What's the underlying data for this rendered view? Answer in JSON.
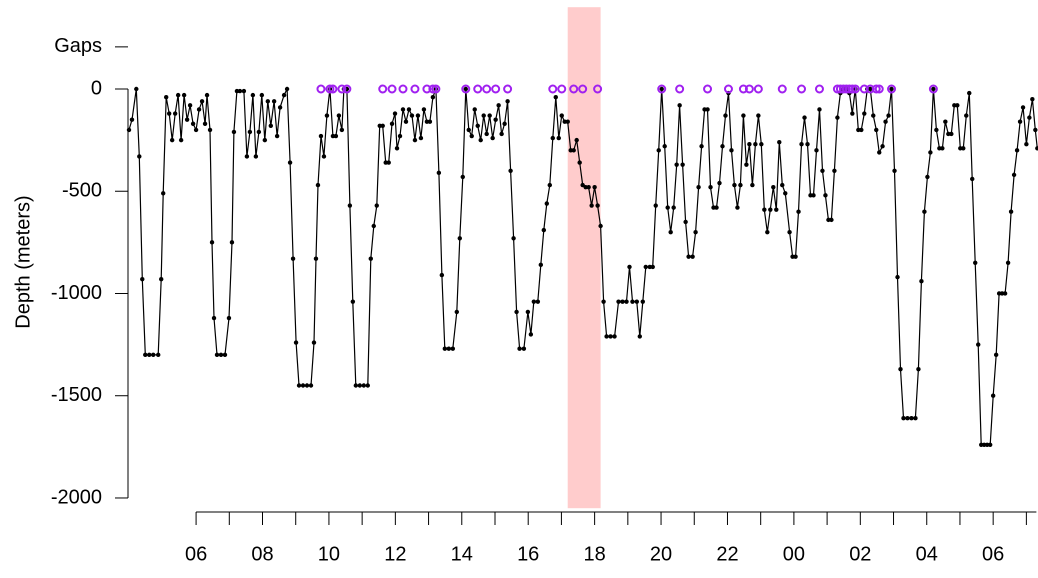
{
  "chart_data": {
    "type": "line",
    "y_label": "Depth (meters)",
    "xlim": [
      3.95,
      31.35
    ],
    "ylim": [
      -2050,
      400
    ],
    "yticks": [
      -2000,
      -1500,
      -1000,
      -500,
      0
    ],
    "xticks": [
      {
        "value": 6,
        "label": "06"
      },
      {
        "value": 8,
        "label": "08"
      },
      10,
      12,
      14,
      16,
      18,
      20,
      22,
      {
        "value": 24,
        "label": "00"
      },
      {
        "value": 26,
        "label": "02"
      },
      {
        "value": 28,
        "label": "04"
      },
      {
        "value": 30,
        "label": "06"
      }
    ],
    "x_minor_ticks": [
      7,
      9,
      11,
      13,
      15,
      17,
      19,
      21,
      23,
      25,
      27,
      29,
      31
    ],
    "highlight": {
      "x": [
        17.19,
        18.18
      ],
      "color": "#ffcccc"
    },
    "gaps": {
      "label": "Gaps",
      "tick_value": 206,
      "color": "#a020f0",
      "x": [
        9.76,
        10.03,
        10.12,
        10.39,
        10.54,
        11.62,
        11.9,
        12.23,
        12.59,
        12.95,
        13.13,
        13.22,
        14.12,
        14.48,
        14.75,
        15.02,
        15.38,
        16.74,
        17.01,
        17.37,
        17.64,
        18.09,
        20.02,
        20.56,
        21.4,
        22.03,
        22.48,
        22.66,
        22.93,
        23.65,
        24.23,
        24.77,
        25.31,
        25.4,
        25.49,
        25.58,
        25.67,
        25.76,
        25.85,
        26.12,
        26.3,
        26.48,
        26.57,
        26.94,
        28.2
      ],
      "values": [
        0,
        0,
        0,
        0,
        0,
        0,
        0,
        0,
        0,
        0,
        0,
        0,
        0,
        0,
        0,
        0,
        0,
        0,
        0,
        0,
        0,
        0,
        0,
        0,
        0,
        0,
        0,
        0,
        0,
        0,
        0,
        0,
        0,
        0,
        0,
        0,
        0,
        0,
        0,
        0,
        0,
        0,
        0,
        0,
        0
      ]
    },
    "series": [
      {
        "color": "#000000",
        "x": [
          3.98,
          4.07,
          4.2,
          4.29,
          4.38,
          4.47,
          4.59,
          4.71,
          4.86,
          4.95,
          5.01,
          5.1,
          5.19,
          5.28,
          5.37,
          5.46,
          5.55,
          5.64,
          5.73,
          5.82,
          5.91,
          6.0,
          6.09,
          6.18,
          6.27,
          6.33,
          6.42,
          6.48,
          6.54,
          6.63,
          6.75,
          6.87,
          6.99,
          7.08,
          7.14,
          7.23,
          7.32,
          7.44,
          7.53,
          7.62,
          7.71,
          7.8,
          7.89,
          7.98,
          8.07,
          8.16,
          8.25,
          8.35,
          8.44,
          8.53,
          8.65,
          8.74,
          8.83,
          8.92,
          9.01,
          9.1,
          9.22,
          9.34,
          9.46,
          9.55,
          9.61,
          9.67,
          9.76,
          9.85,
          9.94,
          10.03,
          10.12,
          10.21,
          10.3,
          10.39,
          10.45,
          10.54,
          10.63,
          10.72,
          10.81,
          10.93,
          11.05,
          11.17,
          11.26,
          11.35,
          11.44,
          11.53,
          11.62,
          11.71,
          11.8,
          11.9,
          11.99,
          12.05,
          12.14,
          12.23,
          12.32,
          12.41,
          12.5,
          12.59,
          12.68,
          12.77,
          12.86,
          12.95,
          13.04,
          13.13,
          13.22,
          13.31,
          13.4,
          13.49,
          13.61,
          13.73,
          13.85,
          13.94,
          14.03,
          14.12,
          14.21,
          14.3,
          14.39,
          14.48,
          14.57,
          14.66,
          14.75,
          14.84,
          14.93,
          15.02,
          15.11,
          15.2,
          15.29,
          15.38,
          15.47,
          15.56,
          15.65,
          15.74,
          15.87,
          15.99,
          16.08,
          16.17,
          16.29,
          16.38,
          16.47,
          16.56,
          16.65,
          16.74,
          16.83,
          16.92,
          17.01,
          17.1,
          17.19,
          17.28,
          17.37,
          17.46,
          17.55,
          17.64,
          17.73,
          17.82,
          17.91,
          18.0,
          18.09,
          18.18,
          18.27,
          18.36,
          18.48,
          18.6,
          18.72,
          18.84,
          18.96,
          19.05,
          19.14,
          19.27,
          19.36,
          19.45,
          19.54,
          19.66,
          19.75,
          19.84,
          19.93,
          20.02,
          20.11,
          20.2,
          20.29,
          20.38,
          20.47,
          20.56,
          20.65,
          20.74,
          20.83,
          20.95,
          21.04,
          21.13,
          21.22,
          21.31,
          21.4,
          21.49,
          21.58,
          21.67,
          21.76,
          21.85,
          21.94,
          22.03,
          22.12,
          22.21,
          22.3,
          22.39,
          22.48,
          22.57,
          22.66,
          22.75,
          22.84,
          22.93,
          23.02,
          23.11,
          23.2,
          23.29,
          23.38,
          23.47,
          23.56,
          23.65,
          23.74,
          23.87,
          23.96,
          24.05,
          24.14,
          24.23,
          24.32,
          24.41,
          24.5,
          24.59,
          24.68,
          24.77,
          24.86,
          24.95,
          25.04,
          25.13,
          25.22,
          25.31,
          25.4,
          25.49,
          25.58,
          25.67,
          25.76,
          25.85,
          25.94,
          26.03,
          26.12,
          26.21,
          26.3,
          26.39,
          26.48,
          26.57,
          26.67,
          26.76,
          26.85,
          26.94,
          27.03,
          27.12,
          27.21,
          27.3,
          27.42,
          27.54,
          27.66,
          27.75,
          27.84,
          27.93,
          28.02,
          28.11,
          28.2,
          28.29,
          28.38,
          28.47,
          28.56,
          28.65,
          28.74,
          28.83,
          28.92,
          29.01,
          29.1,
          29.19,
          29.28,
          29.37,
          29.46,
          29.55,
          29.64,
          29.73,
          29.82,
          29.91,
          30.0,
          30.09,
          30.18,
          30.27,
          30.36,
          30.45,
          30.54,
          30.63,
          30.72,
          30.81,
          30.9,
          31.0,
          31.09,
          31.18,
          31.27,
          31.33
        ],
        "values": [
          -200,
          -150,
          0,
          -330,
          -930,
          -1300,
          -1300,
          -1300,
          -1300,
          -930,
          -510,
          -40,
          -120,
          -250,
          -120,
          -30,
          -250,
          -30,
          -150,
          -80,
          -170,
          -200,
          -100,
          -60,
          -170,
          -30,
          -200,
          -750,
          -1120,
          -1300,
          -1300,
          -1300,
          -1120,
          -750,
          -210,
          -10,
          -10,
          -10,
          -330,
          -210,
          -30,
          -330,
          -210,
          -30,
          -250,
          -60,
          -180,
          -60,
          -230,
          -90,
          -30,
          0,
          -360,
          -830,
          -1240,
          -1450,
          -1450,
          -1450,
          -1450,
          -1240,
          -830,
          -470,
          -230,
          -330,
          -130,
          0,
          -230,
          -230,
          -130,
          -200,
          0,
          0,
          -570,
          -1040,
          -1450,
          -1450,
          -1450,
          -1450,
          -830,
          -670,
          -570,
          -180,
          -180,
          -360,
          -360,
          -170,
          -120,
          -290,
          -230,
          -100,
          -160,
          -100,
          -130,
          -250,
          -130,
          -240,
          -100,
          -160,
          -160,
          -40,
          0,
          -410,
          -910,
          -1270,
          -1270,
          -1270,
          -1090,
          -730,
          -430,
          0,
          -200,
          -230,
          -100,
          -180,
          -250,
          -130,
          -220,
          -130,
          -240,
          -150,
          -80,
          -220,
          -170,
          -60,
          -400,
          -730,
          -1090,
          -1270,
          -1270,
          -1090,
          -1200,
          -1040,
          -1040,
          -860,
          -690,
          -560,
          -470,
          -240,
          -40,
          -240,
          -130,
          -160,
          -160,
          -300,
          -300,
          -250,
          -360,
          -470,
          -480,
          -480,
          -570,
          -480,
          -570,
          -670,
          -1040,
          -1210,
          -1210,
          -1210,
          -1040,
          -1040,
          -1040,
          -870,
          -1040,
          -1040,
          -1210,
          -1040,
          -870,
          -870,
          -870,
          -570,
          -300,
          0,
          -280,
          -580,
          -700,
          -580,
          -370,
          -80,
          -370,
          -650,
          -820,
          -820,
          -700,
          -480,
          -280,
          -100,
          -100,
          -480,
          -580,
          -580,
          -460,
          -280,
          -130,
          -20,
          -300,
          -470,
          -580,
          -470,
          -130,
          -370,
          -270,
          -470,
          -270,
          -130,
          -270,
          -590,
          -700,
          -590,
          -480,
          -590,
          -260,
          -470,
          -510,
          -700,
          -820,
          -820,
          -600,
          -270,
          -140,
          -270,
          -520,
          -520,
          -300,
          -100,
          -400,
          -520,
          -640,
          -640,
          -400,
          -140,
          -20,
          0,
          0,
          -20,
          -120,
          0,
          -200,
          -200,
          -120,
          0,
          0,
          -130,
          -200,
          -310,
          -280,
          -160,
          -130,
          0,
          -400,
          -920,
          -1370,
          -1610,
          -1610,
          -1610,
          -1610,
          -1370,
          -940,
          -600,
          -430,
          -310,
          0,
          -200,
          -290,
          -290,
          -160,
          -220,
          -220,
          -80,
          -80,
          -290,
          -290,
          -130,
          -20,
          -440,
          -850,
          -1250,
          -1740,
          -1740,
          -1740,
          -1740,
          -1500,
          -1300,
          -1000,
          -1000,
          -1000,
          -850,
          -600,
          -420,
          -300,
          -160,
          -90,
          -270,
          -140,
          -50,
          -200,
          -290
        ]
      }
    ]
  }
}
